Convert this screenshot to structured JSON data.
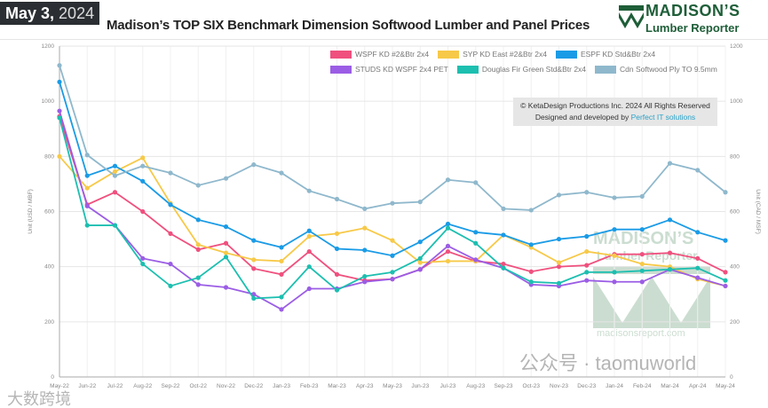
{
  "header": {
    "date_main": "May 3,",
    "date_year": "2024",
    "title": "Madison’s TOP SIX Benchmark Dimension Softwood Lumber and Panel Prices",
    "logo_line1": "MADISON’S",
    "logo_line2": "Lumber Reporter"
  },
  "credit": {
    "line1": "© KetaDesign Productions Inc. 2024 All Rights Reserved",
    "line2_prefix": "Designed and developed by",
    "line2_link": "Perfect IT solutions"
  },
  "watermarks": {
    "center_logo1": "MADISON’S",
    "center_logo2": "Lumber Reporter",
    "center_url": "madisonsreport.com",
    "overlay_right": "公众号 · taomuworld",
    "overlay_left": "大数跨境"
  },
  "chart_data": {
    "type": "line",
    "title": "Madison’s TOP SIX Benchmark Dimension Softwood Lumber and Panel Prices",
    "ylabel": "Unit (USD / MBF)",
    "ylabel_right": "Unit (CAD / MSF)",
    "ylim": [
      0,
      1200
    ],
    "yticks": [
      0,
      200,
      400,
      600,
      800,
      1000,
      1200
    ],
    "grid": true,
    "legend_placement": "top-right",
    "x": [
      "May-22",
      "Jun-22",
      "Jul-22",
      "Aug-22",
      "Sep-22",
      "Oct-22",
      "Nov-22",
      "Dec-22",
      "Jan-23",
      "Feb-23",
      "Mar-23",
      "Apr-23",
      "May-23",
      "Jun-23",
      "Jul-23",
      "Aug-23",
      "Sep-23",
      "Oct-23",
      "Nov-23",
      "Dec-23",
      "Jan-24",
      "Feb-24",
      "Mar-24",
      "Apr-24",
      "May-24"
    ],
    "series": [
      {
        "name": "WSPF KD #2&Btr 2x4",
        "color": "#f0507e",
        "values": [
          945,
          625,
          670,
          600,
          520,
          462,
          485,
          393,
          372,
          455,
          372,
          350,
          355,
          390,
          455,
          420,
          410,
          382,
          400,
          405,
          445,
          445,
          450,
          430,
          380
        ]
      },
      {
        "name": "SYP KD East #2&Btr 2x4",
        "color": "#f7c948",
        "values": [
          800,
          685,
          745,
          795,
          630,
          480,
          450,
          425,
          420,
          510,
          520,
          540,
          495,
          415,
          420,
          420,
          515,
          470,
          415,
          455,
          440,
          410,
          400,
          355,
          330
        ]
      },
      {
        "name": "ESPF KD Std&Btr 2x4",
        "color": "#1a9be6",
        "values": [
          1070,
          730,
          765,
          710,
          625,
          570,
          545,
          495,
          470,
          530,
          465,
          460,
          440,
          490,
          555,
          525,
          515,
          480,
          500,
          510,
          535,
          535,
          570,
          525,
          495
        ]
      },
      {
        "name": "STUDS KD WSPF 2x4 PET",
        "color": "#9b5de5",
        "values": [
          965,
          620,
          550,
          430,
          410,
          335,
          325,
          300,
          245,
          320,
          320,
          345,
          355,
          390,
          475,
          425,
          395,
          335,
          330,
          350,
          345,
          345,
          390,
          360,
          330
        ]
      },
      {
        "name": "Douglas Fir Green Std&Btr 2x4",
        "color": "#1cbfb0",
        "values": [
          940,
          550,
          550,
          410,
          330,
          360,
          435,
          285,
          290,
          400,
          315,
          365,
          380,
          430,
          540,
          485,
          395,
          345,
          340,
          380,
          380,
          385,
          390,
          395,
          350
        ]
      },
      {
        "name": "Cdn Softwood Ply TO 9.5mm",
        "color": "#8fb8cc",
        "values": [
          1130,
          805,
          730,
          765,
          740,
          695,
          720,
          770,
          740,
          675,
          645,
          610,
          630,
          635,
          715,
          705,
          610,
          605,
          660,
          670,
          650,
          655,
          775,
          750,
          670
        ]
      }
    ]
  }
}
